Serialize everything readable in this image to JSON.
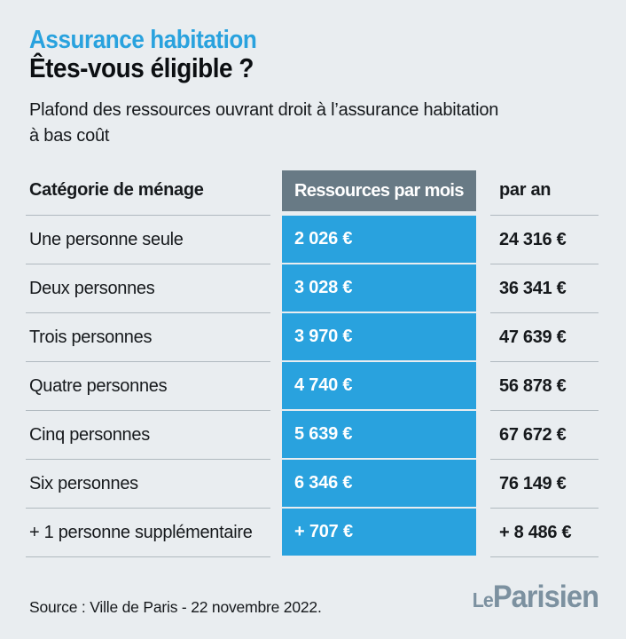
{
  "colors": {
    "background": "#e9edf0",
    "accent_blue": "#29a2de",
    "header_slate": "#687a85",
    "text_dark": "#16191c",
    "divider": "#b0b9bf",
    "logo_gray": "#7c91a0"
  },
  "header": {
    "kicker": "Assurance habitation",
    "title": "Êtes-vous éligible ?",
    "subtitle_line1": "Plafond des ressources ouvrant droit à l’assurance habitation",
    "subtitle_line2": "à bas coût"
  },
  "table": {
    "col_category": "Catégorie de ménage",
    "col_month": "Ressources par mois",
    "col_year": "par an",
    "rows": [
      {
        "category": "Une personne seule",
        "per_month": "2 026 €",
        "per_year": "24 316 €"
      },
      {
        "category": "Deux personnes",
        "per_month": "3 028 €",
        "per_year": "36 341 €"
      },
      {
        "category": "Trois personnes",
        "per_month": "3 970 €",
        "per_year": "47 639 €"
      },
      {
        "category": "Quatre personnes",
        "per_month": "4 740 €",
        "per_year": "56 878 €"
      },
      {
        "category": "Cinq personnes",
        "per_month": "5 639 €",
        "per_year": "67 672 €"
      },
      {
        "category": "Six personnes",
        "per_month": "6 346 €",
        "per_year": "76 149 €"
      },
      {
        "category": "+ 1 personne supplémentaire",
        "per_month": "+ 707 €",
        "per_year": "+ 8 486 €"
      }
    ]
  },
  "footer": {
    "source": "Source : Ville de Paris - 22 novembre 2022.",
    "logo_le": "Le",
    "logo_parisien": "Parisien"
  },
  "chart_data": {
    "type": "table",
    "title": "Assurance habitation — Êtes-vous éligible ?",
    "subtitle": "Plafond des ressources ouvrant droit à l’assurance habitation à bas coût",
    "columns": [
      "Catégorie de ménage",
      "Ressources par mois",
      "par an"
    ],
    "rows": [
      [
        "Une personne seule",
        "2 026 €",
        "24 316 €"
      ],
      [
        "Deux personnes",
        "3 028 €",
        "36 341 €"
      ],
      [
        "Trois personnes",
        "3 970 €",
        "47 639 €"
      ],
      [
        "Quatre personnes",
        "4 740 €",
        "56 878 €"
      ],
      [
        "Cinq personnes",
        "5 639 €",
        "67 672 €"
      ],
      [
        "Six personnes",
        "6 346 €",
        "76 149 €"
      ],
      [
        "+ 1 personne supplémentaire",
        "+ 707 €",
        "+ 8 486 €"
      ]
    ],
    "values_monthly_eur": [
      2026,
      3028,
      3970,
      4740,
      5639,
      6346,
      707
    ],
    "values_yearly_eur": [
      24316,
      36341,
      47639,
      56878,
      67672,
      76149,
      8486
    ],
    "source": "Source : Ville de Paris - 22 novembre 2022."
  }
}
